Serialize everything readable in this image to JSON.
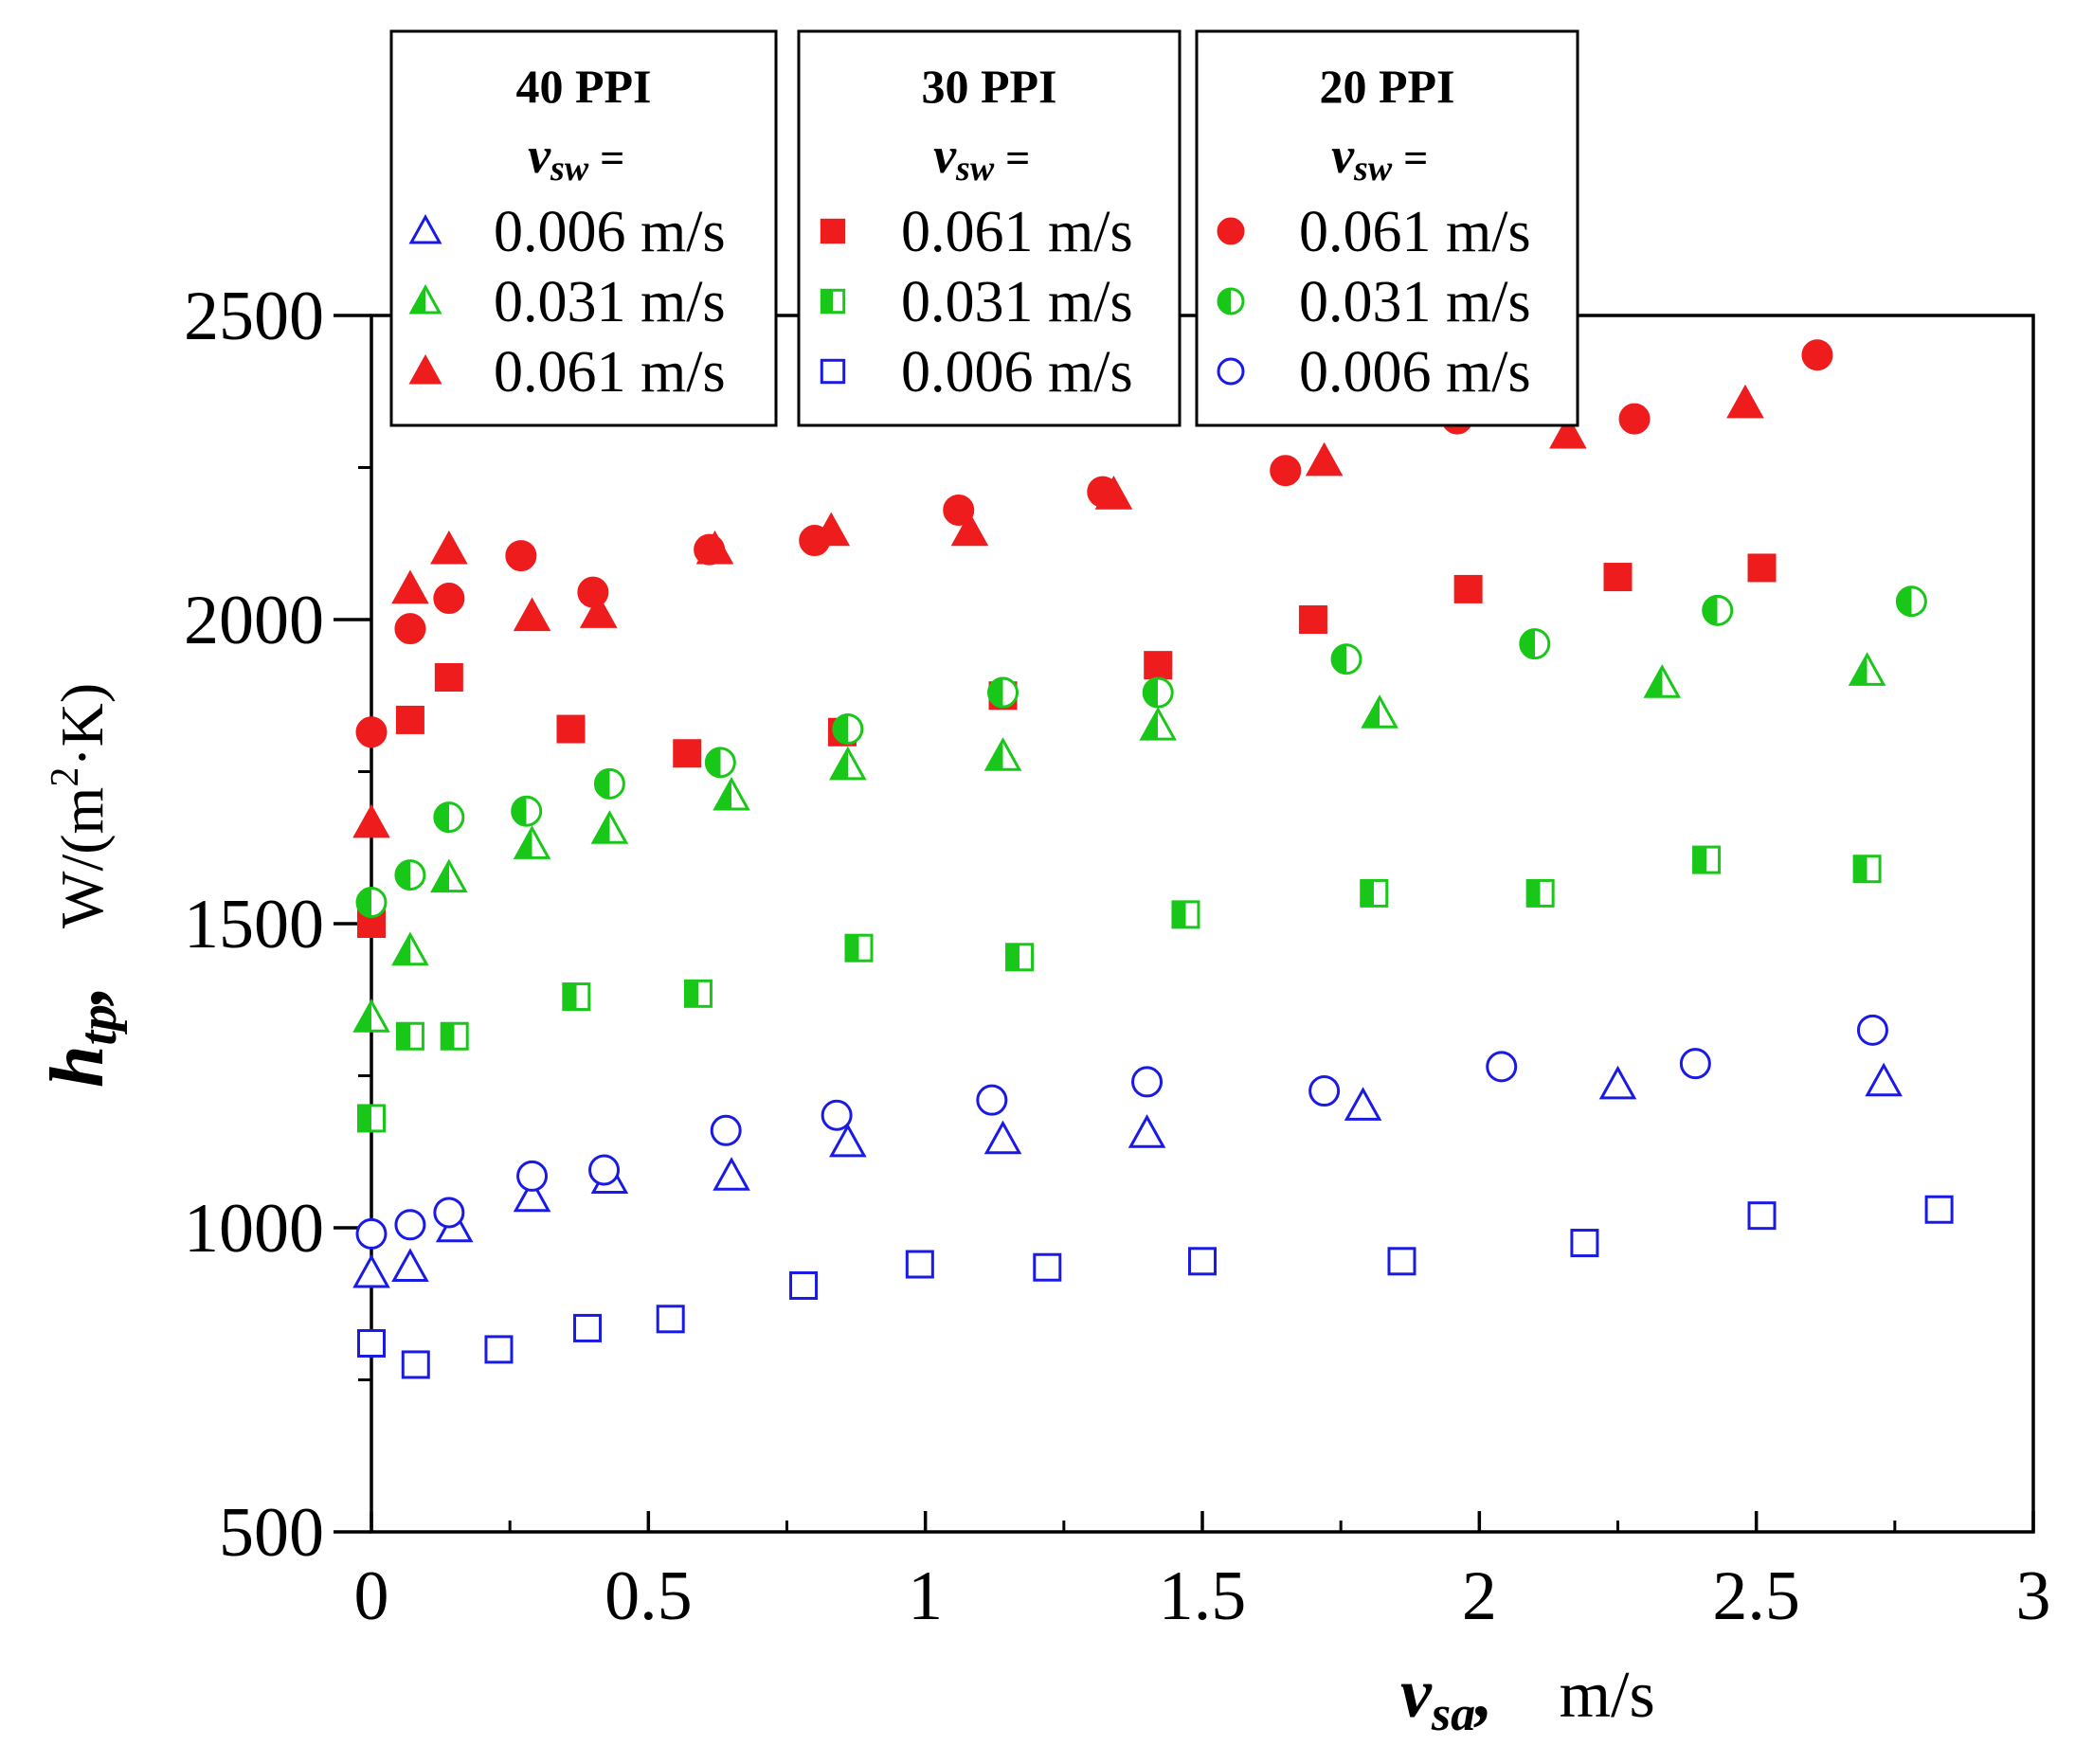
{
  "chart_data": {
    "type": "scatter",
    "xlabel": "v_sa, m/s",
    "xlabel_parts": {
      "main": "v",
      "sub": "sa",
      "punct": ",",
      "unit": "m/s"
    },
    "ylabel": "h_tp, W/(m²·K)",
    "ylabel_parts": {
      "main": "h",
      "sub": "tp",
      "punct": ",",
      "unit_pre": "W/(m",
      "unit_sup": "2",
      "unit_post": "·K)"
    },
    "xlim": [
      0,
      3
    ],
    "ylim": [
      500,
      2500
    ],
    "xticks": [
      0,
      0.5,
      1,
      1.5,
      2,
      2.5,
      3
    ],
    "xtick_labels": [
      "0",
      "0.5",
      "1",
      "1.5",
      "2",
      "2.5",
      "3"
    ],
    "yticks": [
      500,
      1000,
      1500,
      2000,
      2500
    ],
    "ytick_labels": [
      "500",
      "1000",
      "1500",
      "2000",
      "2500"
    ],
    "colors": {
      "red": "#ee1c1c",
      "green": "#19c719",
      "blue": "#1a1ae6"
    },
    "legend_boxes": [
      {
        "title": "40 PPI",
        "sub_main": "v",
        "sub_sub": "sw",
        "sub_eq": " =",
        "entries": [
          {
            "label": "0.006 m/s",
            "series": 0
          },
          {
            "label": "0.031 m/s",
            "series": 1
          },
          {
            "label": "0.061 m/s",
            "series": 2
          }
        ]
      },
      {
        "title": "30 PPI",
        "sub_main": "v",
        "sub_sub": "sw",
        "sub_eq": " =",
        "entries": [
          {
            "label": "0.061 m/s",
            "series": 3
          },
          {
            "label": "0.031 m/s",
            "series": 4
          },
          {
            "label": "0.006 m/s",
            "series": 5
          }
        ]
      },
      {
        "title": "20 PPI",
        "sub_main": "v",
        "sub_sub": "sw",
        "sub_eq": " =",
        "entries": [
          {
            "label": "0.061 m/s",
            "series": 6
          },
          {
            "label": "0.031 m/s",
            "series": 7
          },
          {
            "label": "0.006 m/s",
            "series": 8
          }
        ]
      }
    ],
    "series": [
      {
        "name": "40 PPI, v_sw = 0.006 m/s",
        "marker": "triangle",
        "fill": "open",
        "color": "blue",
        "x": [
          0,
          0.07,
          0.15,
          0.29,
          0.43,
          0.65,
          0.86,
          1.14,
          1.4,
          1.79,
          2.25,
          2.73
        ],
        "y": [
          925,
          935,
          1000,
          1050,
          1080,
          1085,
          1140,
          1145,
          1155,
          1200,
          1235,
          1240
        ]
      },
      {
        "name": "40 PPI, v_sw = 0.031 m/s",
        "marker": "triangle",
        "fill": "half",
        "color": "green",
        "x": [
          0,
          0.07,
          0.14,
          0.29,
          0.43,
          0.65,
          0.86,
          1.14,
          1.42,
          1.82,
          2.33,
          2.7
        ],
        "y": [
          1345,
          1455,
          1575,
          1630,
          1655,
          1710,
          1760,
          1775,
          1825,
          1845,
          1895,
          1915
        ]
      },
      {
        "name": "40 PPI, v_sw = 0.061 m/s",
        "marker": "triangle",
        "fill": "solid",
        "color": "red",
        "x": [
          0,
          0.07,
          0.14,
          0.29,
          0.41,
          0.62,
          0.83,
          1.08,
          1.34,
          1.72,
          2.16,
          2.48
        ],
        "y": [
          1665,
          2050,
          2115,
          2005,
          2010,
          2115,
          2145,
          2145,
          2205,
          2260,
          2305,
          2355
        ]
      },
      {
        "name": "30 PPI, v_sw = 0.061 m/s",
        "marker": "square",
        "fill": "solid",
        "color": "red",
        "x": [
          0,
          0.07,
          0.14,
          0.36,
          0.57,
          0.85,
          1.14,
          1.42,
          1.7,
          1.98,
          2.25,
          2.51
        ],
        "y": [
          1500,
          1835,
          1905,
          1820,
          1780,
          1815,
          1875,
          1925,
          2000,
          2050,
          2070,
          2085
        ]
      },
      {
        "name": "30 PPI, v_sw = 0.031 m/s",
        "marker": "square",
        "fill": "half",
        "color": "green",
        "x": [
          0,
          0.07,
          0.15,
          0.37,
          0.59,
          0.88,
          1.17,
          1.47,
          1.81,
          2.11,
          2.41,
          2.7
        ],
        "y": [
          1180,
          1315,
          1315,
          1380,
          1385,
          1460,
          1445,
          1515,
          1550,
          1550,
          1605,
          1590
        ]
      },
      {
        "name": "30 PPI, v_sw = 0.006 m/s",
        "marker": "square",
        "fill": "open",
        "color": "blue",
        "x": [
          0,
          0.08,
          0.23,
          0.39,
          0.54,
          0.78,
          0.99,
          1.22,
          1.5,
          1.86,
          2.19,
          2.51,
          2.83
        ],
        "y": [
          810,
          775,
          800,
          835,
          850,
          905,
          940,
          935,
          945,
          945,
          975,
          1020,
          1030
        ]
      },
      {
        "name": "20 PPI, v_sw = 0.061 m/s",
        "marker": "circle",
        "fill": "solid",
        "color": "red",
        "x": [
          0,
          0.07,
          0.14,
          0.27,
          0.4,
          0.61,
          0.8,
          1.06,
          1.32,
          1.65,
          1.96,
          2.28,
          2.61
        ],
        "y": [
          1815,
          1985,
          2035,
          2105,
          2045,
          2115,
          2130,
          2180,
          2210,
          2245,
          2330,
          2330,
          2435
        ]
      },
      {
        "name": "20 PPI, v_sw = 0.031 m/s",
        "marker": "circle",
        "fill": "half",
        "color": "green",
        "x": [
          0,
          0.07,
          0.14,
          0.28,
          0.43,
          0.63,
          0.86,
          1.14,
          1.42,
          1.76,
          2.1,
          2.43,
          2.78
        ],
        "y": [
          1535,
          1580,
          1675,
          1685,
          1730,
          1765,
          1820,
          1880,
          1880,
          1935,
          1960,
          2015,
          2030
        ]
      },
      {
        "name": "20 PPI, v_sw = 0.006 m/s",
        "marker": "circle",
        "fill": "open",
        "color": "blue",
        "x": [
          0,
          0.07,
          0.14,
          0.29,
          0.42,
          0.64,
          0.84,
          1.12,
          1.4,
          1.72,
          2.04,
          2.39,
          2.71
        ],
        "y": [
          990,
          1005,
          1025,
          1085,
          1095,
          1160,
          1185,
          1210,
          1240,
          1225,
          1265,
          1270,
          1325
        ]
      }
    ]
  }
}
